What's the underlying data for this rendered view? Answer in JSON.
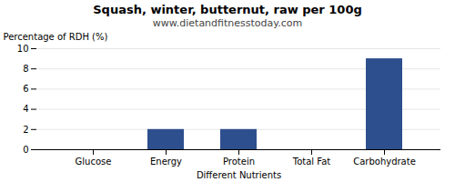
{
  "chart_data": {
    "type": "bar",
    "title": "Squash, winter, butternut, raw per 100g",
    "subtitle": "www.dietandfitnesstoday.com",
    "categories": [
      "Glucose",
      "Energy",
      "Protein",
      "Total Fat",
      "Carbohydrate"
    ],
    "values": [
      0,
      2,
      2,
      0,
      9
    ],
    "color": "#2e4f8e",
    "xlabel": "Different Nutrients",
    "ylabel": "Percentage of RDH (%)",
    "ylim": [
      0,
      10
    ],
    "yticks": [
      0,
      2,
      4,
      6,
      8,
      10
    ],
    "grid": true
  }
}
